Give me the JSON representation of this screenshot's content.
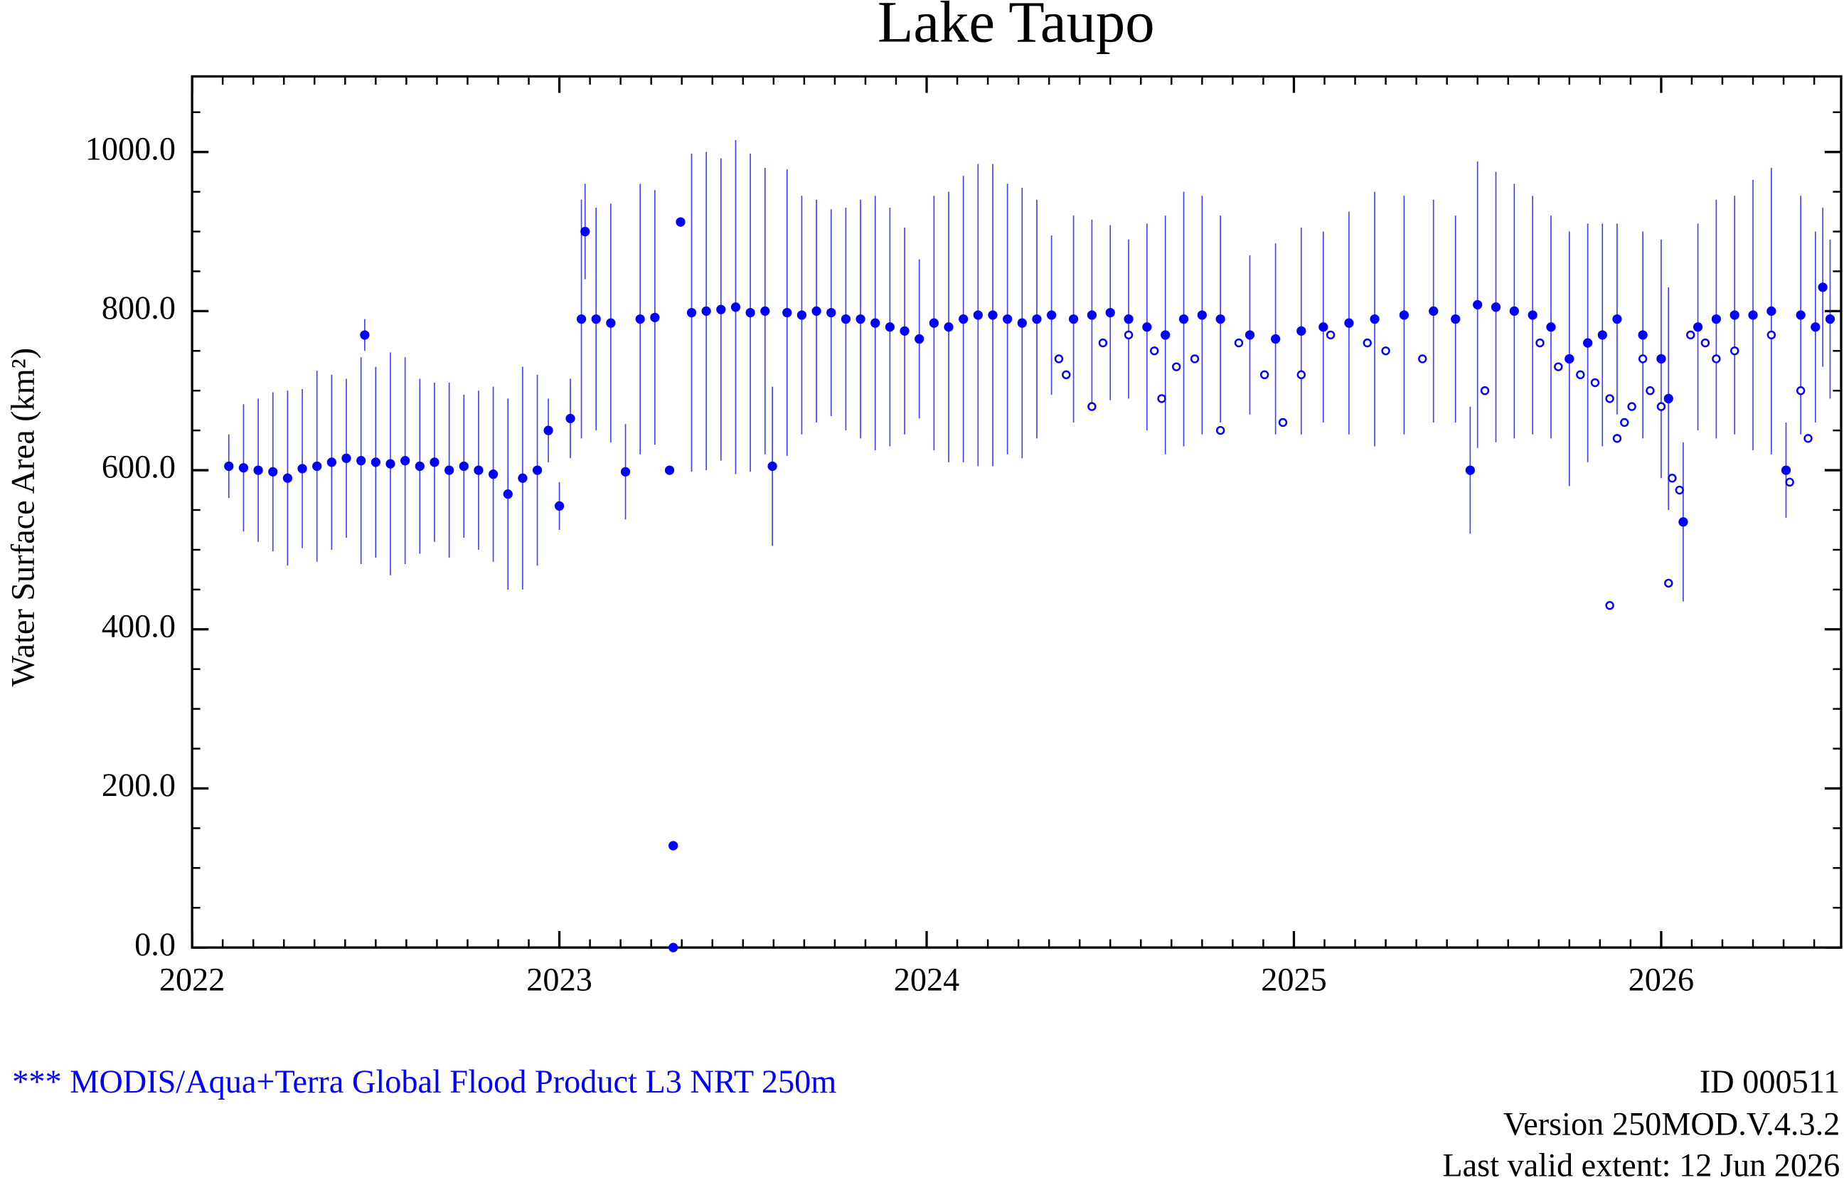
{
  "chart_data": {
    "type": "scatter",
    "title": "Lake Taupo",
    "ylabel": "Water Surface Area (km²)",
    "xlim": [
      2022,
      2026.49
    ],
    "xticks": [
      2022,
      2023,
      2024,
      2025,
      2026
    ],
    "ylim": [
      0,
      1095
    ],
    "yticks": [
      {
        "value": 0,
        "label": "0.0"
      },
      {
        "value": 200,
        "label": "200.0"
      },
      {
        "value": 400,
        "label": "400.0"
      },
      {
        "value": 600,
        "label": "600.0"
      },
      {
        "value": 800,
        "label": "800.0"
      },
      {
        "value": 1000,
        "label": "1000.0"
      }
    ],
    "series": [
      {
        "color": "#0000ff",
        "marker": "filled",
        "x": [
          2022.1,
          2022.14,
          2022.18,
          2022.22,
          2022.26,
          2022.3,
          2022.34,
          2022.38,
          2022.42,
          2022.46,
          2022.47,
          2022.5,
          2022.54,
          2022.58,
          2022.62,
          2022.66,
          2022.7,
          2022.74,
          2022.78,
          2022.82,
          2022.86,
          2022.9,
          2022.94,
          2022.97,
          2023.0,
          2023.03,
          2023.06,
          2023.07,
          2023.1,
          2023.14,
          2023.18,
          2023.22,
          2023.26,
          2023.3,
          2023.31,
          2023.31,
          2023.33,
          2023.36,
          2023.4,
          2023.44,
          2023.48,
          2023.52,
          2023.56,
          2023.58,
          2023.62,
          2023.66,
          2023.7,
          2023.74,
          2023.78,
          2023.82,
          2023.86,
          2023.9,
          2023.94,
          2023.98,
          2024.02,
          2024.06,
          2024.1,
          2024.14,
          2024.18,
          2024.22,
          2024.26,
          2024.3,
          2024.34,
          2024.4,
          2024.45,
          2024.5,
          2024.55,
          2024.6,
          2024.65,
          2024.7,
          2024.75,
          2024.8,
          2024.88,
          2024.95,
          2025.02,
          2025.08,
          2025.15,
          2025.22,
          2025.3,
          2025.38,
          2025.44,
          2025.48,
          2025.5,
          2025.55,
          2025.6,
          2025.65,
          2025.7,
          2025.75,
          2025.8,
          2025.84,
          2025.88,
          2025.95,
          2026.0,
          2026.02,
          2026.06,
          2026.1,
          2026.15,
          2026.2,
          2026.25,
          2026.3,
          2026.34,
          2026.38,
          2026.42,
          2026.44,
          2026.46
        ],
        "values": [
          605,
          603,
          600,
          598,
          590,
          602,
          605,
          610,
          615,
          612,
          770,
          610,
          608,
          612,
          605,
          610,
          600,
          605,
          600,
          595,
          570,
          590,
          600,
          650,
          555,
          665,
          790,
          900,
          790,
          785,
          598,
          790,
          792,
          600,
          128,
          0,
          912,
          798,
          800,
          802,
          805,
          798,
          800,
          605,
          798,
          795,
          800,
          798,
          790,
          790,
          785,
          780,
          775,
          765,
          785,
          780,
          790,
          795,
          795,
          790,
          785,
          790,
          795,
          790,
          795,
          798,
          790,
          780,
          770,
          790,
          795,
          790,
          770,
          765,
          775,
          780,
          785,
          790,
          795,
          800,
          790,
          600,
          808,
          805,
          800,
          795,
          780,
          740,
          760,
          770,
          790,
          770,
          740,
          690,
          535,
          780,
          790,
          795,
          795,
          800,
          600,
          795,
          780,
          830,
          790
        ],
        "errors": [
          40,
          80,
          90,
          100,
          110,
          100,
          120,
          110,
          100,
          130,
          20,
          120,
          140,
          130,
          110,
          100,
          110,
          90,
          100,
          110,
          120,
          140,
          120,
          40,
          30,
          50,
          150,
          60,
          140,
          150,
          60,
          170,
          160,
          0,
          0,
          0,
          0,
          200,
          200,
          190,
          210,
          200,
          180,
          100,
          180,
          150,
          140,
          130,
          140,
          150,
          160,
          150,
          130,
          100,
          160,
          170,
          180,
          190,
          190,
          170,
          170,
          150,
          100,
          130,
          120,
          110,
          100,
          130,
          150,
          160,
          150,
          130,
          100,
          120,
          130,
          120,
          140,
          160,
          150,
          140,
          130,
          80,
          180,
          170,
          160,
          150,
          140,
          160,
          150,
          140,
          120,
          130,
          150,
          140,
          100,
          130,
          150,
          150,
          170,
          180,
          60,
          150,
          120,
          100,
          100
        ]
      },
      {
        "color": "#0000ff",
        "marker": "open",
        "x": [
          2024.36,
          2024.38,
          2024.45,
          2024.48,
          2024.55,
          2024.62,
          2024.64,
          2024.68,
          2024.73,
          2024.8,
          2024.85,
          2024.92,
          2024.97,
          2025.02,
          2025.1,
          2025.2,
          2025.25,
          2025.35,
          2025.52,
          2025.67,
          2025.72,
          2025.78,
          2025.82,
          2025.86,
          2025.86,
          2025.88,
          2025.9,
          2025.92,
          2025.95,
          2025.97,
          2026.0,
          2026.02,
          2026.03,
          2026.05,
          2026.08,
          2026.12,
          2026.15,
          2026.2,
          2026.3,
          2026.35,
          2026.38,
          2026.4
        ],
        "values": [
          740,
          720,
          680,
          760,
          770,
          750,
          690,
          730,
          740,
          650,
          760,
          720,
          660,
          720,
          770,
          760,
          750,
          740,
          700,
          760,
          730,
          720,
          710,
          690,
          430,
          640,
          660,
          680,
          740,
          700,
          680,
          458,
          590,
          575,
          770,
          760,
          740,
          750,
          770,
          585,
          700,
          640
        ]
      }
    ],
    "footer": {
      "source": "*** MODIS/Aqua+Terra Global Flood Product L3 NRT 250m",
      "id": "ID 000511",
      "version": "Version 250MOD.V.4.3.2",
      "extent": "Last valid extent: 12 Jun 2026"
    }
  }
}
